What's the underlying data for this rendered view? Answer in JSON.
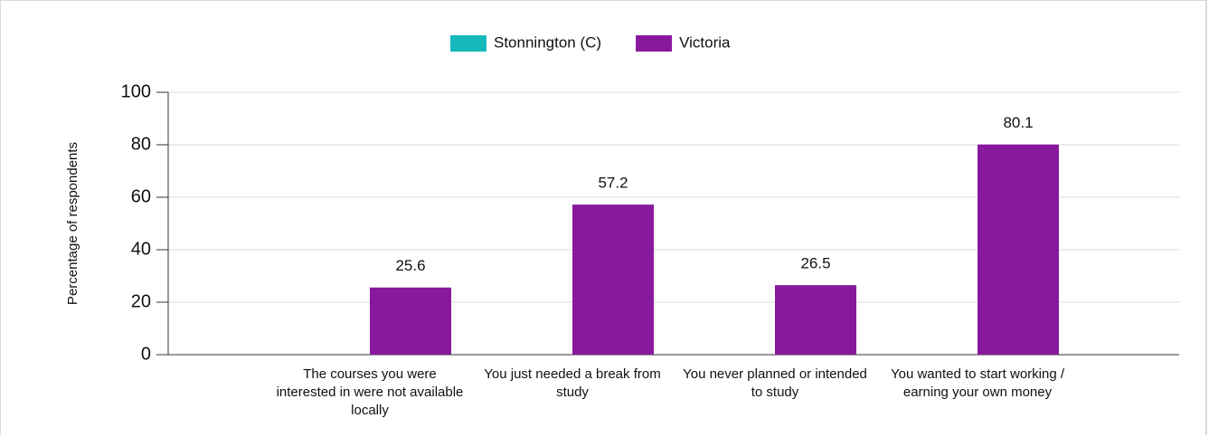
{
  "chart_data": {
    "type": "bar",
    "categories": [
      "The courses you were interested in were not available locally",
      "You just needed a break from study",
      "You never planned or intended to study",
      "You wanted to start working / earning your own money"
    ],
    "series": [
      {
        "name": "Stonnington (C)",
        "color": "#16b9bb",
        "values": [
          null,
          null,
          null,
          null
        ]
      },
      {
        "name": "Victoria",
        "color": "#88199c",
        "values": [
          25.6,
          57.2,
          26.5,
          80.1
        ]
      }
    ],
    "y_label": "Percentage of respondents",
    "ylim": [
      0,
      100
    ],
    "yticks": [
      0,
      20,
      40,
      60,
      80,
      100
    ],
    "grid": true,
    "legend": "top"
  }
}
